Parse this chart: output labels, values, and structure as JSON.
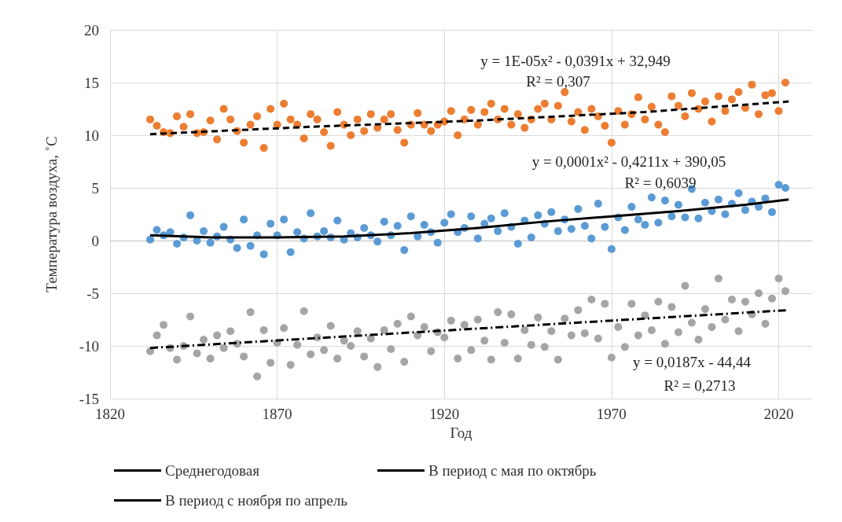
{
  "chart_data": {
    "type": "scatter",
    "xlabel": "Год",
    "ylabel": "Температура воздуха, ˚С",
    "xlim": [
      1820,
      2030
    ],
    "xticks": [
      1820,
      1870,
      1920,
      1970,
      2020
    ],
    "ylim": [
      -15,
      20
    ],
    "yticks": [
      -15,
      -10,
      -5,
      0,
      5,
      10,
      15,
      20
    ],
    "grid": true,
    "legend": "bottom",
    "x": [
      1832,
      1834,
      1836,
      1838,
      1840,
      1842,
      1844,
      1846,
      1848,
      1850,
      1852,
      1854,
      1856,
      1858,
      1860,
      1862,
      1864,
      1866,
      1868,
      1870,
      1872,
      1874,
      1876,
      1878,
      1880,
      1882,
      1884,
      1886,
      1888,
      1890,
      1892,
      1894,
      1896,
      1898,
      1900,
      1902,
      1904,
      1906,
      1908,
      1910,
      1912,
      1914,
      1916,
      1918,
      1920,
      1922,
      1924,
      1926,
      1928,
      1930,
      1932,
      1934,
      1936,
      1938,
      1940,
      1942,
      1944,
      1946,
      1948,
      1950,
      1952,
      1954,
      1956,
      1958,
      1960,
      1962,
      1964,
      1966,
      1968,
      1970,
      1972,
      1974,
      1976,
      1978,
      1980,
      1982,
      1984,
      1986,
      1988,
      1990,
      1992,
      1994,
      1996,
      1998,
      2000,
      2002,
      2004,
      2006,
      2008,
      2010,
      2012,
      2014,
      2016,
      2018,
      2020,
      2022
    ],
    "series": [
      {
        "type": "scatter",
        "color": "#ed7d31",
        "marker": "circle",
        "values": [
          11.5,
          10.9,
          10.3,
          10.2,
          11.8,
          10.8,
          12.0,
          10.2,
          10.3,
          11.4,
          9.6,
          12.5,
          11.5,
          10.4,
          9.3,
          11.0,
          11.8,
          8.8,
          12.5,
          11.0,
          13.0,
          11.5,
          11.0,
          9.7,
          12.0,
          11.5,
          10.3,
          9.0,
          12.2,
          11.0,
          10.0,
          11.5,
          10.4,
          12.0,
          10.7,
          11.5,
          12.0,
          10.5,
          9.3,
          11.0,
          12.1,
          11.0,
          10.4,
          11.0,
          11.3,
          12.3,
          10.0,
          11.5,
          12.4,
          11.0,
          12.2,
          13.0,
          11.5,
          12.5,
          11.0,
          12.0,
          10.7,
          11.5,
          12.5,
          13.0,
          11.5,
          12.8,
          14.1,
          11.3,
          12.2,
          10.5,
          12.5,
          11.8,
          10.9,
          9.3,
          12.3,
          11.0,
          12.0,
          13.6,
          11.5,
          12.7,
          11.0,
          10.3,
          13.7,
          12.8,
          11.8,
          14.0,
          12.5,
          13.2,
          11.3,
          13.7,
          12.3,
          13.4,
          14.1,
          12.6,
          14.8,
          12.0,
          13.8,
          14.0,
          12.3,
          15.0
        ]
      },
      {
        "type": "scatter",
        "color": "#5b9bd5",
        "marker": "circle",
        "values": [
          0.1,
          1.0,
          0.5,
          0.8,
          -0.3,
          0.3,
          2.4,
          0.0,
          0.9,
          -0.2,
          0.4,
          1.3,
          0.1,
          -0.7,
          2.0,
          -0.5,
          0.5,
          -1.3,
          1.6,
          0.5,
          2.0,
          -1.1,
          0.8,
          0.2,
          2.6,
          0.4,
          0.9,
          0.3,
          1.9,
          0.1,
          0.7,
          0.3,
          1.2,
          0.5,
          -0.1,
          1.8,
          0.5,
          1.4,
          -0.9,
          2.3,
          0.4,
          1.5,
          0.8,
          -0.2,
          1.7,
          2.5,
          0.8,
          1.2,
          2.3,
          0.2,
          1.6,
          2.1,
          0.9,
          2.6,
          1.3,
          -0.3,
          1.9,
          0.3,
          2.4,
          1.6,
          2.7,
          0.9,
          2.0,
          1.1,
          3.0,
          1.4,
          0.2,
          3.5,
          1.3,
          -0.8,
          2.2,
          1.0,
          3.2,
          2.0,
          1.5,
          4.1,
          1.7,
          3.8,
          2.3,
          3.4,
          2.2,
          4.9,
          2.1,
          3.6,
          2.8,
          3.9,
          2.5,
          3.5,
          4.5,
          2.9,
          3.7,
          3.2,
          4.0,
          2.7,
          5.3,
          5.0
        ]
      },
      {
        "type": "scatter",
        "color": "#a5a5a5",
        "marker": "circle",
        "values": [
          -10.5,
          -9.0,
          -8.0,
          -10.2,
          -11.3,
          -10.0,
          -7.2,
          -10.7,
          -9.4,
          -11.2,
          -9.0,
          -10.2,
          -8.6,
          -9.8,
          -11.0,
          -6.8,
          -12.9,
          -8.5,
          -11.6,
          -9.7,
          -8.3,
          -11.8,
          -9.9,
          -6.7,
          -10.8,
          -9.2,
          -10.4,
          -8.1,
          -11.2,
          -9.5,
          -10.0,
          -8.6,
          -11.0,
          -9.3,
          -12.0,
          -8.5,
          -10.3,
          -7.9,
          -11.5,
          -7.2,
          -9.0,
          -8.2,
          -10.5,
          -8.7,
          -9.2,
          -7.6,
          -11.2,
          -8.0,
          -10.4,
          -7.5,
          -9.5,
          -11.3,
          -6.8,
          -9.7,
          -7.0,
          -11.2,
          -8.5,
          -9.9,
          -7.3,
          -10.1,
          -8.6,
          -11.3,
          -7.4,
          -9.0,
          -6.6,
          -8.8,
          -5.6,
          -9.3,
          -6.0,
          -11.1,
          -8.2,
          -10.1,
          -6.0,
          -9.0,
          -7.1,
          -8.5,
          -5.8,
          -9.8,
          -6.3,
          -8.7,
          -4.3,
          -7.8,
          -9.4,
          -6.5,
          -8.2,
          -3.6,
          -7.5,
          -5.6,
          -8.6,
          -5.8,
          -7.0,
          -5.0,
          -7.9,
          -5.5,
          -3.6,
          -4.8
        ]
      },
      {
        "type": "line",
        "name": "Среднегодовая",
        "color": "#000000",
        "line_style": "solid",
        "marker": "none",
        "x": [
          1832,
          1850,
          1870,
          1890,
          1910,
          1930,
          1950,
          1970,
          1990,
          2010,
          2023
        ],
        "values": [
          0.5,
          0.3,
          0.3,
          0.4,
          0.7,
          1.2,
          1.8,
          2.3,
          2.8,
          3.4,
          3.9
        ]
      },
      {
        "type": "line",
        "name": "В период с мая по октябрь",
        "color": "#000000",
        "line_style": "dashed",
        "marker": "none",
        "x": [
          1832,
          1880,
          1930,
          1980,
          2023
        ],
        "values": [
          10.1,
          10.8,
          11.4,
          12.2,
          13.2
        ]
      },
      {
        "type": "line",
        "name": "В период с ноября по апрель",
        "color": "#000000",
        "line_style": "dashdot",
        "marker": "none",
        "x": [
          1832,
          2023
        ],
        "values": [
          -10.2,
          -6.6
        ]
      }
    ],
    "annotations": [
      "y = 1E-05x² - 0,0391x + 32,949",
      "R² = 0,307",
      "y = 0,0001x² - 0,4211x + 390,05",
      "R² = 0,6039",
      "y = 0,0187x - 44,44",
      "R² = 0,2713"
    ]
  }
}
